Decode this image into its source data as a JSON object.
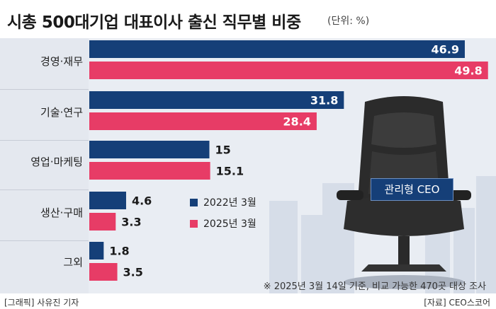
{
  "title": "시총 500대기업 대표이사 출신 직무별 비중",
  "unit": "(단위: %)",
  "badge": "관리형 CEO",
  "note": "※ 2025년 3월 14일 기준, 비교 가능한 470곳 대상 조사",
  "credit_left": "[그래픽] 사유진 기자",
  "credit_right": "[자료] CEO스코어",
  "colors": {
    "series_2022": "#153f78",
    "series_2025": "#e73c66"
  },
  "chart_data": {
    "type": "bar",
    "orientation": "horizontal",
    "title": "시총 500대기업 대표이사 출신 직무별 비중",
    "unit": "(단위: %)",
    "categories": [
      "경영·재무",
      "기술·연구",
      "영업·마케팅",
      "생산·구매",
      "그외"
    ],
    "series": [
      {
        "name": "2022년 3월",
        "values": [
          46.9,
          31.8,
          15,
          4.6,
          1.8
        ],
        "value_labels": [
          "46.9",
          "31.8",
          "15",
          "4.6",
          "1.8"
        ]
      },
      {
        "name": "2025년 3월",
        "values": [
          49.8,
          28.4,
          15.1,
          3.3,
          3.5
        ],
        "value_labels": [
          "49.8",
          "28.4",
          "15.1",
          "3.3",
          "3.5"
        ]
      }
    ],
    "legend_position": "lower-middle",
    "grid": false
  }
}
